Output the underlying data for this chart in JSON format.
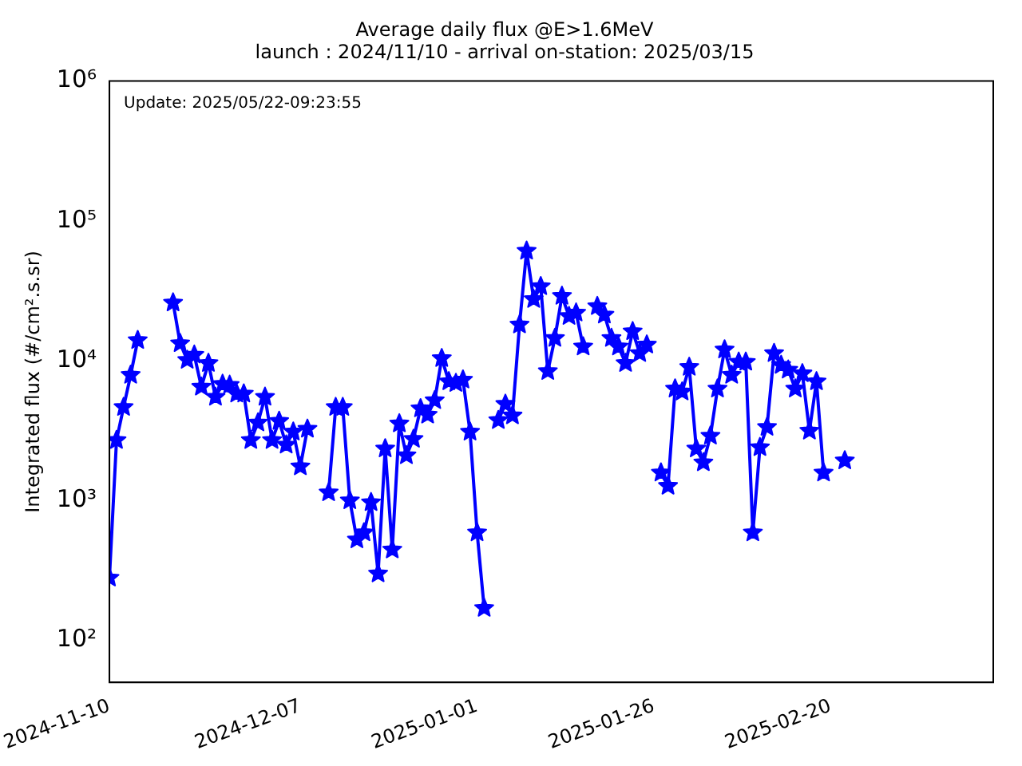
{
  "chart_data": {
    "type": "line",
    "title": "Average daily flux @E>1.6MeV",
    "subtitle": "launch : 2024/11/10 - arrival on-station: 2025/03/15",
    "ylabel": "Integrated flux (#/cm².s.sr)",
    "annotations": [
      "Update: 2025/05/22-09:23:55"
    ],
    "x": [
      "2024-11-10",
      "2024-11-11",
      "2024-11-12",
      "2024-11-13",
      "2024-11-14",
      "2024-11-15",
      "2024-11-16",
      "2024-11-17",
      "2024-11-18",
      "2024-11-19",
      "2024-11-20",
      "2024-11-21",
      "2024-11-22",
      "2024-11-23",
      "2024-11-24",
      "2024-11-25",
      "2024-11-26",
      "2024-11-27",
      "2024-11-28",
      "2024-11-29",
      "2024-11-30",
      "2024-12-01",
      "2024-12-02",
      "2024-12-03",
      "2024-12-04",
      "2024-12-05",
      "2024-12-06",
      "2024-12-07",
      "2024-12-08",
      "2024-12-09",
      "2024-12-10",
      "2024-12-11",
      "2024-12-12",
      "2024-12-13",
      "2024-12-14",
      "2024-12-15",
      "2024-12-16",
      "2024-12-17",
      "2024-12-18",
      "2024-12-19",
      "2024-12-20",
      "2024-12-21",
      "2024-12-22",
      "2024-12-23",
      "2024-12-24",
      "2024-12-25",
      "2024-12-26",
      "2024-12-27",
      "2024-12-28",
      "2024-12-29",
      "2024-12-30",
      "2024-12-31",
      "2025-01-01",
      "2025-01-02",
      "2025-01-03",
      "2025-01-04",
      "2025-01-05",
      "2025-01-06",
      "2025-01-07",
      "2025-01-08",
      "2025-01-09",
      "2025-01-10",
      "2025-01-11",
      "2025-01-12",
      "2025-01-13",
      "2025-01-14",
      "2025-01-15",
      "2025-01-16",
      "2025-01-17",
      "2025-01-18",
      "2025-01-19",
      "2025-01-20",
      "2025-01-21",
      "2025-01-22",
      "2025-01-23",
      "2025-01-24",
      "2025-01-25",
      "2025-01-26",
      "2025-01-27",
      "2025-01-28",
      "2025-01-29",
      "2025-01-30",
      "2025-01-31",
      "2025-02-01",
      "2025-02-02",
      "2025-02-03",
      "2025-02-04",
      "2025-02-05",
      "2025-02-06",
      "2025-02-07",
      "2025-02-08",
      "2025-02-09",
      "2025-02-10",
      "2025-02-11",
      "2025-02-12",
      "2025-02-13",
      "2025-02-14",
      "2025-02-15",
      "2025-02-16",
      "2025-02-17",
      "2025-02-18",
      "2025-02-19",
      "2025-02-20",
      "2025-02-21",
      "2025-02-22"
    ],
    "series": [
      {
        "color": "#0000ff",
        "values": [
          280,
          2700,
          4650,
          7900,
          14000,
          null,
          null,
          null,
          null,
          26000,
          13300,
          10100,
          11000,
          6500,
          9600,
          5500,
          6800,
          6700,
          5800,
          5800,
          2700,
          3600,
          5500,
          2700,
          3700,
          2500,
          3100,
          1750,
          3250,
          null,
          null,
          1140,
          4650,
          4650,
          1000,
          525,
          590,
          970,
          300,
          2350,
          445,
          3550,
          2100,
          2750,
          4550,
          4100,
          5200,
          10400,
          7100,
          6900,
          7300,
          3100,
          590,
          170,
          null,
          3750,
          4900,
          4050,
          18100,
          61000,
          27500,
          34000,
          8400,
          14500,
          29000,
          20800,
          22000,
          12600,
          null,
          24500,
          21300,
          14500,
          12600,
          9600,
          16200,
          11300,
          13000,
          null,
          1580,
          1270,
          6300,
          6000,
          9000,
          2350,
          1870,
          2900,
          6300,
          12000,
          7900,
          9800,
          9800,
          590,
          2400,
          3350,
          11300,
          9300,
          8600,
          6300,
          8100,
          3150,
          7100,
          1580,
          null,
          null,
          1930
        ]
      }
    ],
    "log": "y",
    "ylim": [
      50,
      1000000
    ],
    "yticks": [
      {
        "value": 100,
        "label": "10²"
      },
      {
        "value": 1000,
        "label": "10³"
      },
      {
        "value": 10000,
        "label": "10⁴"
      },
      {
        "value": 100000,
        "label": "10⁵"
      },
      {
        "value": 1000000,
        "label": "10⁶"
      }
    ],
    "xlim": [
      "2024-11-10",
      "2025-03-15"
    ],
    "xticks": [
      "2024-11-10",
      "2024-12-07",
      "2025-01-01",
      "2025-01-26",
      "2025-02-20"
    ],
    "grid": false,
    "legend": false,
    "marker": "star",
    "line_style": "solid"
  }
}
